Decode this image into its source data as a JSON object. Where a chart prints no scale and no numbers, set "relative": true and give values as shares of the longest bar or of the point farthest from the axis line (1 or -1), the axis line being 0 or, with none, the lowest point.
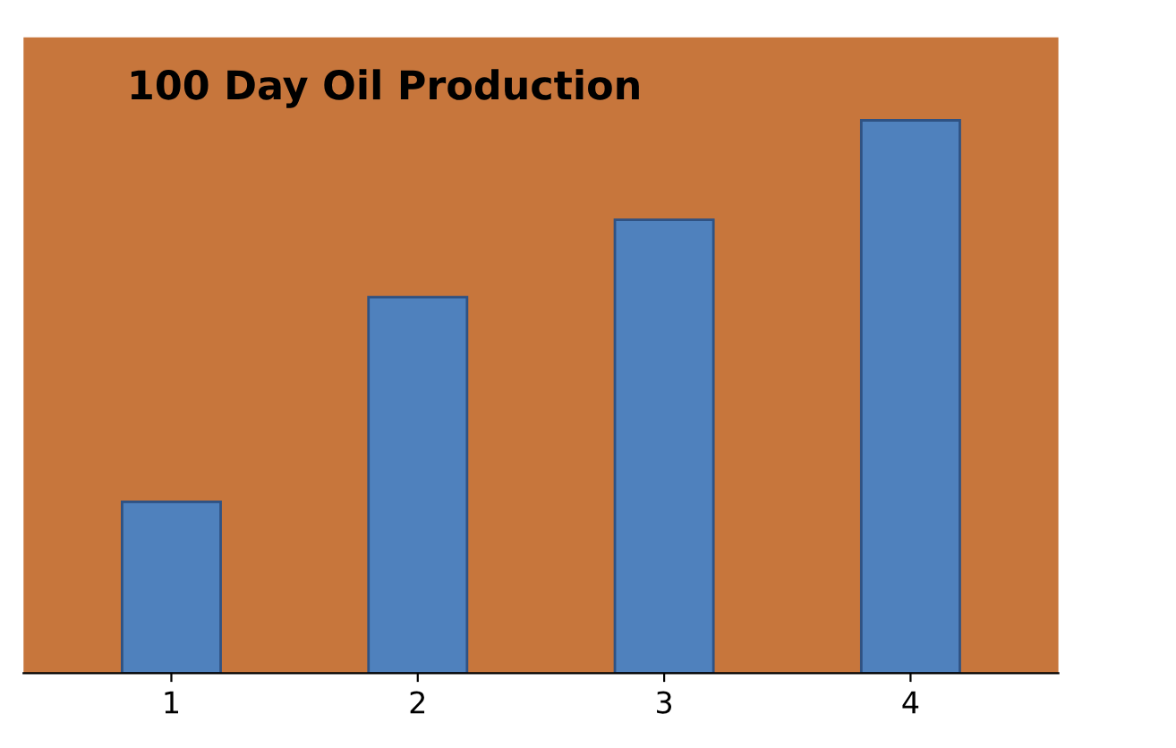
{
  "chart_data": {
    "type": "bar",
    "title": "100 Day Oil Production",
    "relative": true,
    "categories": [
      "1",
      "2",
      "3",
      "4"
    ],
    "values": [
      0.31,
      0.68,
      0.82,
      1.0
    ],
    "color": "#4f81bd",
    "grid": false,
    "legend": false
  }
}
